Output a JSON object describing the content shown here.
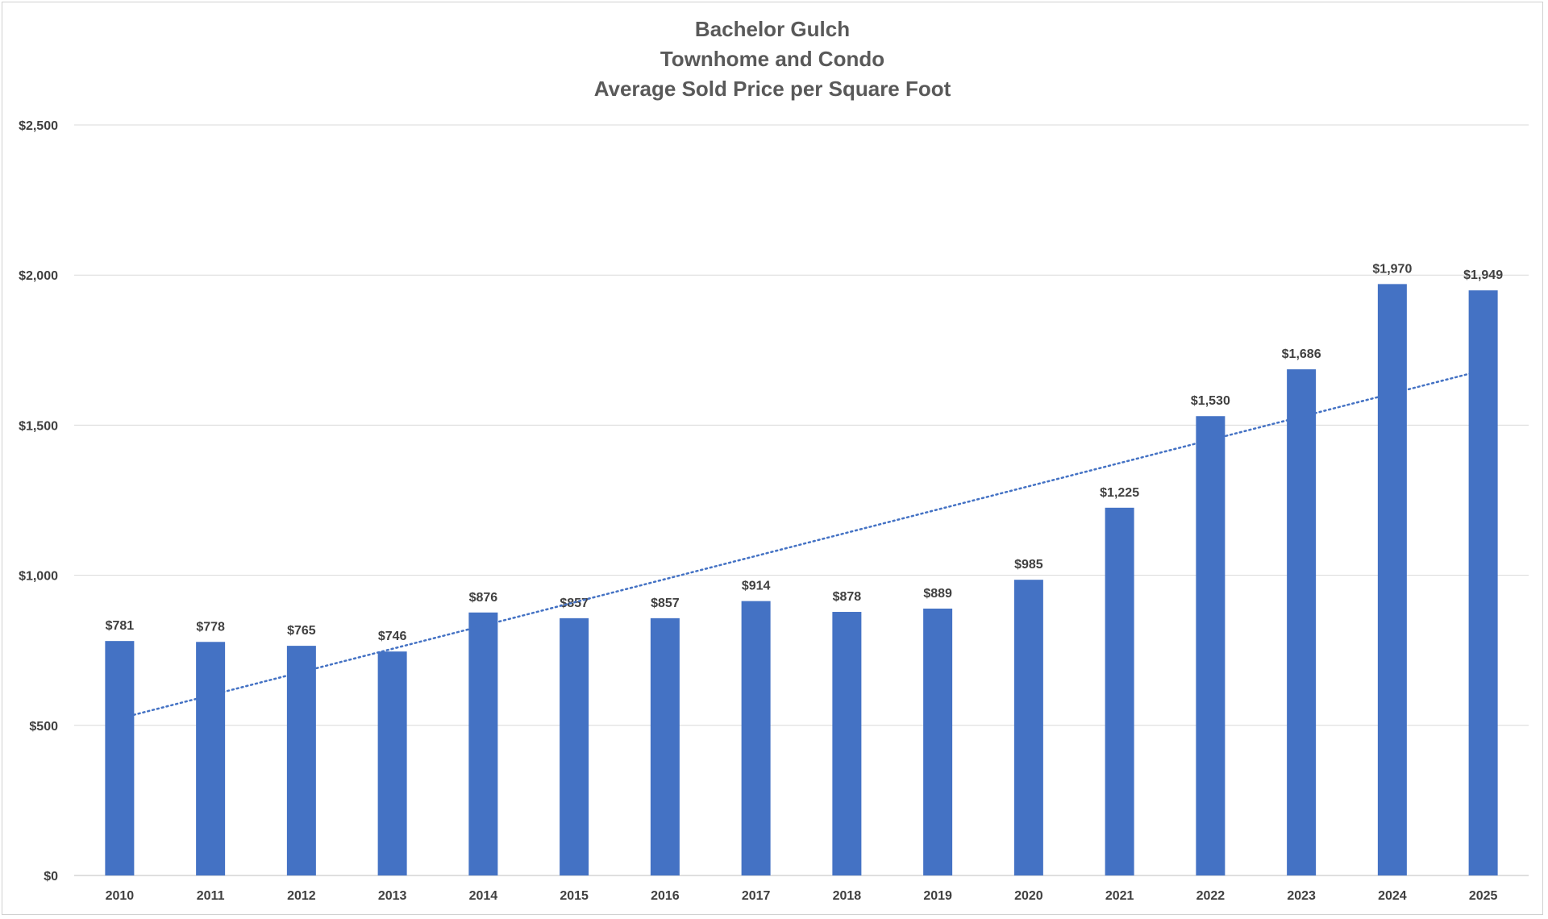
{
  "chart_data": {
    "type": "bar",
    "title": [
      "Bachelor Gulch",
      "Townhome and Condo",
      "Average Sold Price per Square Foot"
    ],
    "categories": [
      "2010",
      "2011",
      "2012",
      "2013",
      "2014",
      "2015",
      "2016",
      "2017",
      "2018",
      "2019",
      "2020",
      "2021",
      "2022",
      "2023",
      "2024",
      "2025"
    ],
    "values": [
      781,
      778,
      765,
      746,
      876,
      857,
      857,
      914,
      878,
      889,
      985,
      1225,
      1530,
      1686,
      1970,
      1949
    ],
    "data_labels": [
      "$781",
      "$778",
      "$765",
      "$746",
      "$876",
      "$857",
      "$857",
      "$914",
      "$878",
      "$889",
      "$985",
      "$1,225",
      "$1,530",
      "$1,686",
      "$1,970",
      "$1,949"
    ],
    "ylim": [
      0,
      2500
    ],
    "y_ticks": [
      0,
      500,
      1000,
      1500,
      2000,
      2500
    ],
    "y_tick_labels": [
      "$0",
      "$500",
      "$1,000",
      "$1,500",
      "$2,000",
      "$2,500"
    ],
    "trendline": {
      "type": "linear",
      "style": "dotted",
      "start": 523,
      "end": 1683
    },
    "grid": true,
    "legend": "none",
    "colors": {
      "bar": "#4472C4",
      "trendline": "#4472C4",
      "grid": "#d9d9d9",
      "text": "#404040",
      "title": "#595959"
    }
  }
}
